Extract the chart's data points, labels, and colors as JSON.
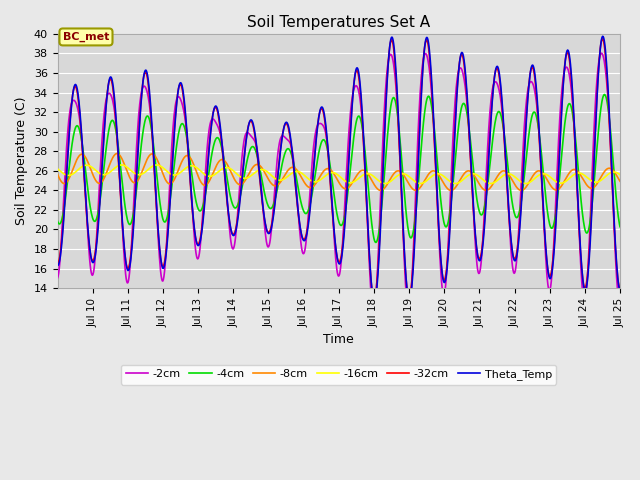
{
  "title": "Soil Temperatures Set A",
  "xlabel": "Time",
  "ylabel": "Soil Temperature (C)",
  "ylim": [
    14,
    40
  ],
  "annotation": "BC_met",
  "legend_labels": [
    "-2cm",
    "-4cm",
    "-8cm",
    "-16cm",
    "-32cm",
    "Theta_Temp"
  ],
  "line_colors": [
    "#ff0000",
    "#0000dd",
    "#00dd00",
    "#ff8800",
    "#ffff00",
    "#cc00cc"
  ],
  "line_widths": [
    1.2,
    1.2,
    1.2,
    1.2,
    1.2,
    1.2
  ],
  "plot_bg_color": "#d8d8d8",
  "fig_bg_color": "#e8e8e8",
  "ylim_min": 14,
  "ylim_max": 40,
  "xstart": 9.5,
  "xend": 25.0,
  "n_points": 1000,
  "period": 1.0
}
